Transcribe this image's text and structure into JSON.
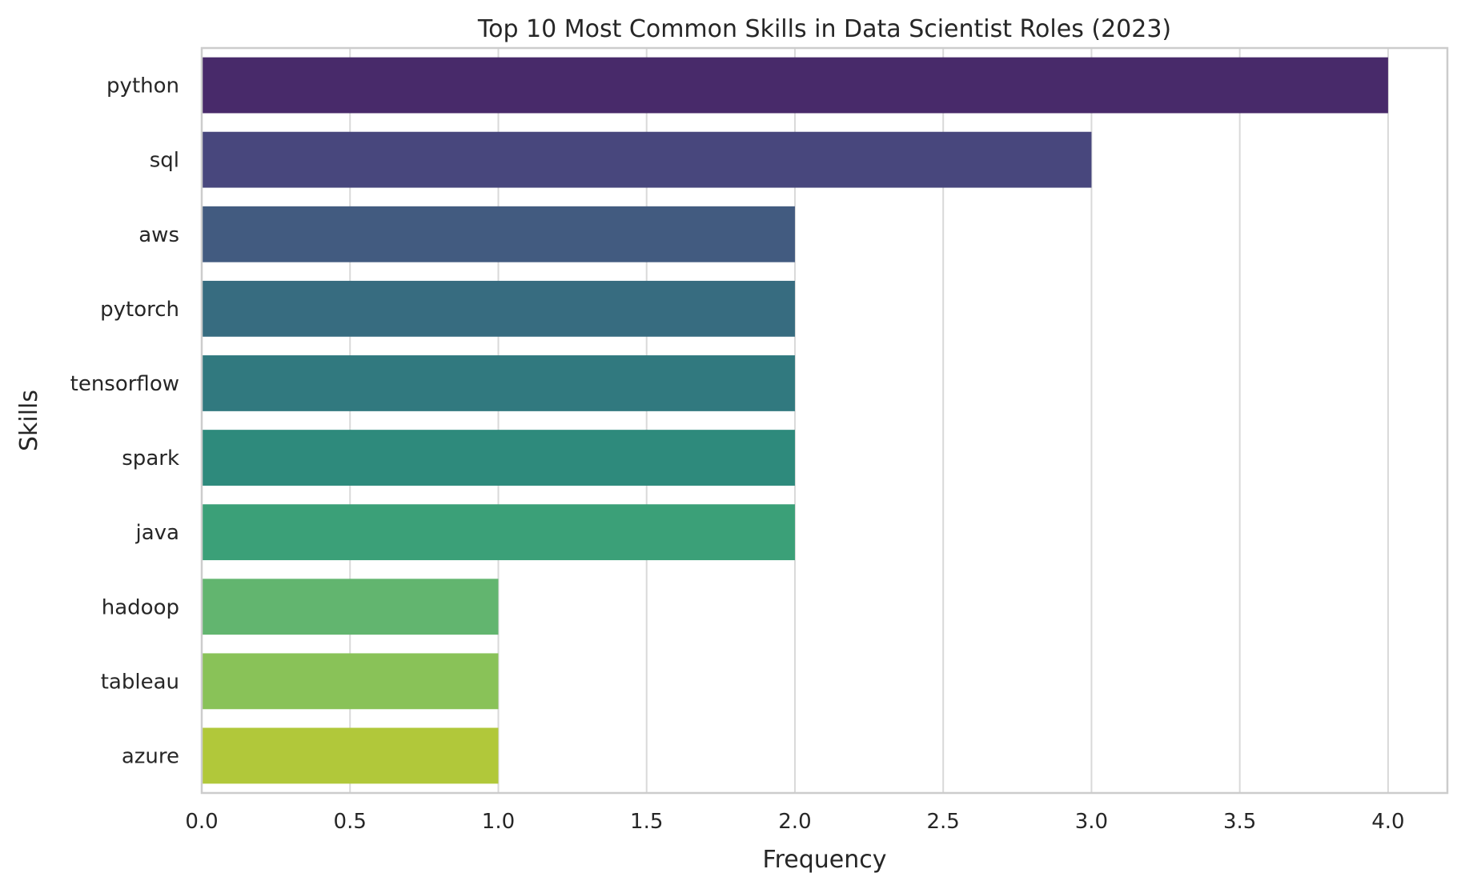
{
  "chart_data": {
    "type": "bar",
    "orientation": "horizontal",
    "title": "Top 10 Most Common Skills in Data Scientist Roles (2023)",
    "xlabel": "Frequency",
    "ylabel": "Skills",
    "categories": [
      "python",
      "sql",
      "aws",
      "pytorch",
      "tensorflow",
      "spark",
      "java",
      "hadoop",
      "tableau",
      "azure"
    ],
    "values": [
      4,
      3,
      2,
      2,
      2,
      2,
      2,
      1,
      1,
      1
    ],
    "colors": [
      "#482a6a",
      "#48477d",
      "#425b80",
      "#376c80",
      "#31797f",
      "#2e8a7c",
      "#3ba078",
      "#62b56f",
      "#89c258",
      "#b1c83a"
    ],
    "xlim": [
      0,
      4.2
    ],
    "xticks": [
      0.0,
      0.5,
      1.0,
      1.5,
      2.0,
      2.5,
      3.0,
      3.5,
      4.0
    ],
    "xtick_labels": [
      "0.0",
      "0.5",
      "1.0",
      "1.5",
      "2.0",
      "2.5",
      "3.0",
      "3.5",
      "4.0"
    ],
    "grid": true,
    "legend": "none"
  }
}
